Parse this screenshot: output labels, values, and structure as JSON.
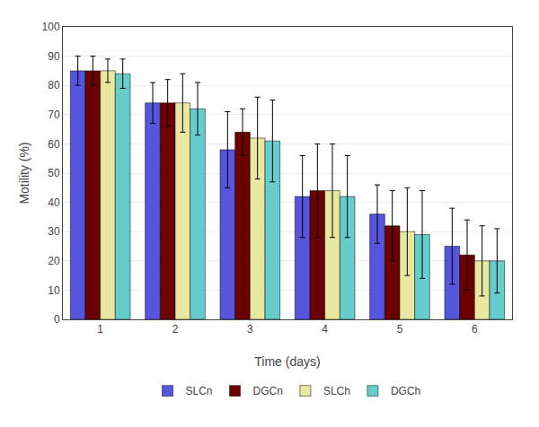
{
  "chart_data": {
    "type": "bar",
    "categories": [
      1,
      2,
      3,
      4,
      5,
      6
    ],
    "series": [
      {
        "name": "SLCn",
        "color": "#5555dd",
        "values": [
          85,
          74,
          58,
          42,
          36,
          25
        ],
        "errors": [
          5,
          7,
          13,
          14,
          10,
          13
        ]
      },
      {
        "name": "DGCn",
        "color": "#6b0000",
        "values": [
          85,
          74,
          64,
          44,
          32,
          22
        ],
        "errors": [
          5,
          8,
          8,
          16,
          12,
          12
        ]
      },
      {
        "name": "SLCh",
        "color": "#e8e8a0",
        "values": [
          85,
          74,
          62,
          44,
          30,
          20
        ],
        "errors": [
          4,
          10,
          14,
          16,
          15,
          12
        ]
      },
      {
        "name": "DGCh",
        "color": "#66cccc",
        "values": [
          84,
          72,
          61,
          42,
          29,
          20
        ],
        "errors": [
          5,
          9,
          14,
          14,
          15,
          11
        ]
      }
    ],
    "xlabel": "Time (days)",
    "ylabel": "Motility (%)",
    "ylim": [
      0,
      100
    ],
    "yticks": [
      0,
      10,
      20,
      30,
      40,
      50,
      60,
      70,
      80,
      90,
      100
    ],
    "grid": true,
    "legend": "bottom"
  }
}
